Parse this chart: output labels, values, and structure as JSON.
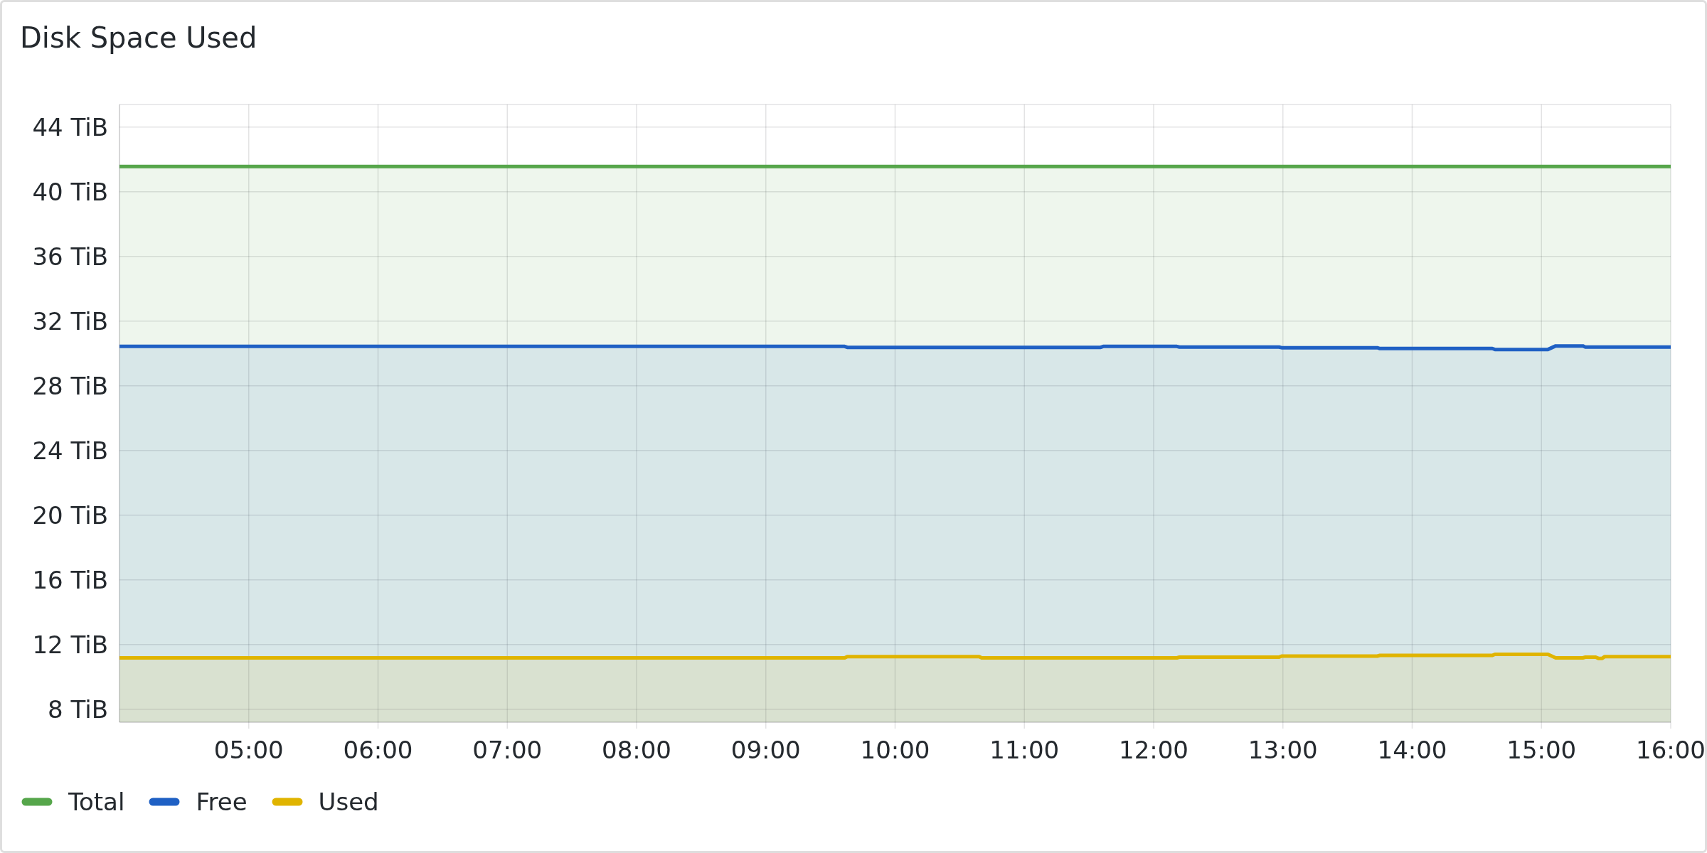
{
  "chart_data": {
    "type": "area",
    "title": "Disk Space Used",
    "x": [
      4.0,
      9.61,
      9.63,
      10.65,
      10.67,
      11.59,
      11.61,
      12.18,
      12.2,
      12.97,
      12.99,
      13.73,
      13.75,
      14.62,
      14.64,
      15.05,
      15.11,
      15.32,
      15.34,
      15.42,
      15.44,
      15.47,
      15.49,
      16.0
    ],
    "series": [
      {
        "name": "Total",
        "color": "#56a64b",
        "values": [
          41.56,
          41.56,
          41.56,
          41.56,
          41.56,
          41.56,
          41.56,
          41.56,
          41.56,
          41.56,
          41.56,
          41.56,
          41.56,
          41.56,
          41.56,
          41.56,
          41.56,
          41.56,
          41.56,
          41.56,
          41.56,
          41.56,
          41.56,
          41.56
        ]
      },
      {
        "name": "Free",
        "color": "#1f60c4",
        "values": [
          30.44,
          30.44,
          30.38,
          30.38,
          30.38,
          30.38,
          30.44,
          30.44,
          30.4,
          30.4,
          30.36,
          30.36,
          30.31,
          30.31,
          30.25,
          30.25,
          30.47,
          30.47,
          30.4,
          30.4,
          30.4,
          30.4,
          30.4,
          30.4
        ]
      },
      {
        "name": "Used",
        "color": "#e0b400",
        "values": [
          11.18,
          11.18,
          11.26,
          11.26,
          11.18,
          11.18,
          11.18,
          11.18,
          11.22,
          11.22,
          11.29,
          11.29,
          11.33,
          11.33,
          11.4,
          11.4,
          11.18,
          11.18,
          11.22,
          11.22,
          11.15,
          11.15,
          11.26,
          11.26
        ]
      }
    ],
    "xlim": [
      4,
      16
    ],
    "xticks": [
      {
        "value": 5,
        "label": "05:00"
      },
      {
        "value": 6,
        "label": "06:00"
      },
      {
        "value": 7,
        "label": "07:00"
      },
      {
        "value": 8,
        "label": "08:00"
      },
      {
        "value": 9,
        "label": "09:00"
      },
      {
        "value": 10,
        "label": "10:00"
      },
      {
        "value": 11,
        "label": "11:00"
      },
      {
        "value": 12,
        "label": "12:00"
      },
      {
        "value": 13,
        "label": "13:00"
      },
      {
        "value": 14,
        "label": "14:00"
      },
      {
        "value": 15,
        "label": "15:00"
      },
      {
        "value": 16,
        "label": "16:00"
      }
    ],
    "ylim": [
      7.2,
      45.4
    ],
    "yticks": [
      {
        "value": 8,
        "label": "8 TiB"
      },
      {
        "value": 12,
        "label": "12 TiB"
      },
      {
        "value": 16,
        "label": "16 TiB"
      },
      {
        "value": 20,
        "label": "20 TiB"
      },
      {
        "value": 24,
        "label": "24 TiB"
      },
      {
        "value": 28,
        "label": "28 TiB"
      },
      {
        "value": 32,
        "label": "32 TiB"
      },
      {
        "value": 36,
        "label": "36 TiB"
      },
      {
        "value": 40,
        "label": "40 TiB"
      },
      {
        "value": 44,
        "label": "44 TiB"
      }
    ],
    "grid": true,
    "legend": "bottom left"
  }
}
